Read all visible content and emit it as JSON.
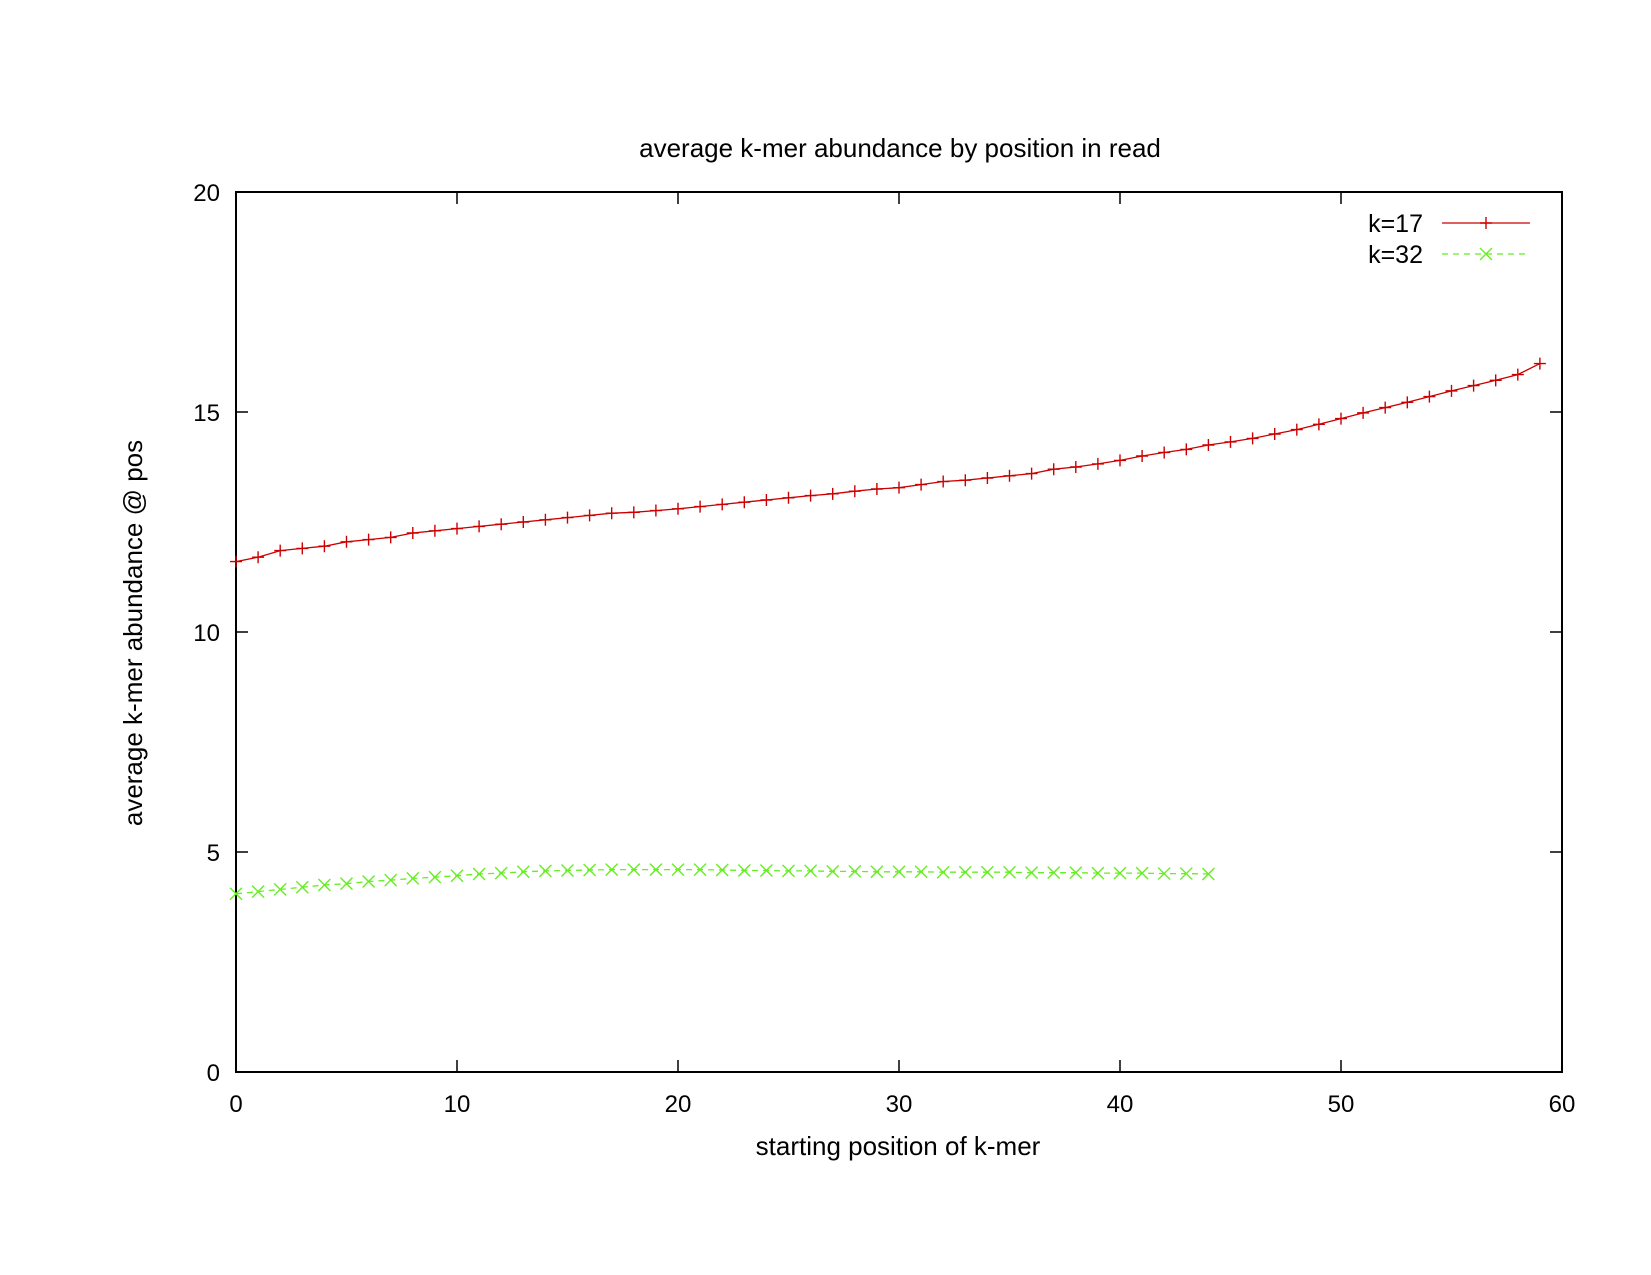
{
  "chart_data": {
    "type": "line",
    "title": "average k-mer abundance by position in read",
    "xlabel": "starting position of k-mer",
    "ylabel": "average k-mer abundance @ pos",
    "xlim": [
      0,
      60
    ],
    "ylim": [
      0,
      20
    ],
    "xticks": [
      0,
      10,
      20,
      30,
      40,
      50,
      60
    ],
    "yticks": [
      0,
      5,
      10,
      15,
      20
    ],
    "xtick_labels": [
      "0",
      "10",
      "20",
      "30",
      "40",
      "50",
      "60"
    ],
    "ytick_labels": [
      "0",
      "5",
      "10",
      "15",
      "20"
    ],
    "grid": false,
    "legend_position": "top-right",
    "series": [
      {
        "name": "k=17",
        "color": "#cc0000",
        "marker": "plus",
        "line_style": "solid",
        "x": [
          0,
          1,
          2,
          3,
          4,
          5,
          6,
          7,
          8,
          9,
          10,
          11,
          12,
          13,
          14,
          15,
          16,
          17,
          18,
          19,
          20,
          21,
          22,
          23,
          24,
          25,
          26,
          27,
          28,
          29,
          30,
          31,
          32,
          33,
          34,
          35,
          36,
          37,
          38,
          39,
          40,
          41,
          42,
          43,
          44,
          45,
          46,
          47,
          48,
          49,
          50,
          51,
          52,
          53,
          54,
          55,
          56,
          57,
          58,
          59
        ],
        "values": [
          11.6,
          11.7,
          11.85,
          11.9,
          11.95,
          12.05,
          12.1,
          12.15,
          12.25,
          12.3,
          12.35,
          12.4,
          12.45,
          12.5,
          12.55,
          12.6,
          12.65,
          12.7,
          12.72,
          12.76,
          12.8,
          12.85,
          12.9,
          12.95,
          13.0,
          13.05,
          13.1,
          13.14,
          13.2,
          13.25,
          13.28,
          13.35,
          13.42,
          13.45,
          13.5,
          13.55,
          13.6,
          13.7,
          13.75,
          13.82,
          13.9,
          14.0,
          14.08,
          14.15,
          14.25,
          14.32,
          14.4,
          14.5,
          14.6,
          14.72,
          14.85,
          14.98,
          15.1,
          15.22,
          15.35,
          15.48,
          15.6,
          15.72,
          15.85,
          16.1
        ]
      },
      {
        "name": "k=32",
        "color": "#66ee22",
        "marker": "cross",
        "line_style": "dashed",
        "x": [
          0,
          1,
          2,
          3,
          4,
          5,
          6,
          7,
          8,
          9,
          10,
          11,
          12,
          13,
          14,
          15,
          16,
          17,
          18,
          19,
          20,
          21,
          22,
          23,
          24,
          25,
          26,
          27,
          28,
          29,
          30,
          31,
          32,
          33,
          34,
          35,
          36,
          37,
          38,
          39,
          40,
          41,
          42,
          43,
          44
        ],
        "values": [
          4.05,
          4.1,
          4.15,
          4.2,
          4.25,
          4.28,
          4.33,
          4.36,
          4.4,
          4.43,
          4.46,
          4.5,
          4.52,
          4.55,
          4.57,
          4.58,
          4.59,
          4.6,
          4.6,
          4.6,
          4.6,
          4.6,
          4.59,
          4.58,
          4.58,
          4.57,
          4.57,
          4.56,
          4.56,
          4.55,
          4.55,
          4.55,
          4.54,
          4.54,
          4.54,
          4.54,
          4.53,
          4.53,
          4.53,
          4.52,
          4.52,
          4.52,
          4.51,
          4.51,
          4.5
        ]
      }
    ]
  }
}
